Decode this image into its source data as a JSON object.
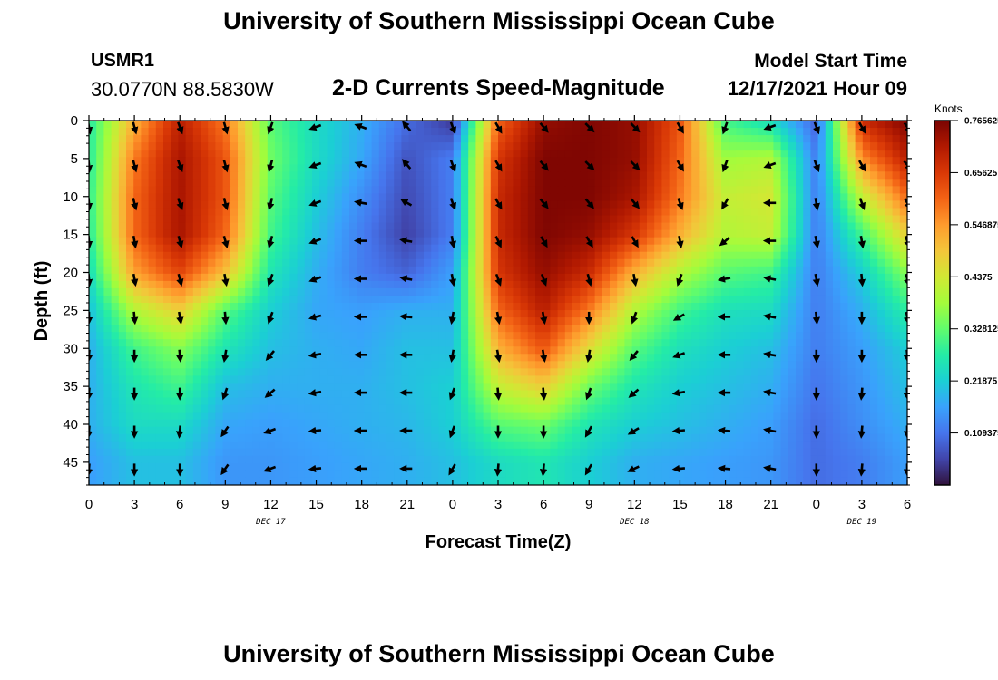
{
  "header": {
    "title": "University of Southern Mississippi Ocean Cube",
    "station_id": "USMR1",
    "coords": "30.0770N  88.5830W",
    "subtitle": "2-D Currents Speed-Magnitude",
    "start_label": "Model Start Time",
    "start_value": "12/17/2021 Hour 09"
  },
  "footer": {
    "title": "University of Southern Mississippi Ocean Cube"
  },
  "colorbar": {
    "unit": "Knots",
    "ticks": [
      "0.109375",
      "0.21875",
      "0.328125",
      "0.4375",
      "0.546875",
      "0.65625",
      "0.765625"
    ],
    "colors": [
      "#30123b",
      "#4145ab",
      "#4675ed",
      "#39a2fc",
      "#1bcfd4",
      "#24eca6",
      "#61fc6c",
      "#a4fc3b",
      "#d1e834",
      "#f3c63a",
      "#fe9b2d",
      "#f36315",
      "#d93806",
      "#b11901",
      "#7a0402"
    ]
  },
  "chart_data": {
    "type": "heatmap",
    "title": "2-D Currents Speed-Magnitude",
    "xlabel": "Forecast Time(Z)",
    "ylabel": "Depth (ft)",
    "x_tick_labels": [
      "0",
      "3",
      "6",
      "9",
      "12",
      "15",
      "18",
      "21",
      "0",
      "3",
      "6",
      "9",
      "12",
      "15",
      "18",
      "21",
      "0",
      "3",
      "6"
    ],
    "x_date_labels": [
      {
        "label": "DEC 17",
        "tick_index": 4
      },
      {
        "label": "DEC 18",
        "tick_index": 12
      },
      {
        "label": "DEC 19",
        "tick_index": 17
      }
    ],
    "y_ticks": [
      0,
      5,
      10,
      15,
      20,
      25,
      30,
      35,
      40,
      45
    ],
    "ylim": [
      0,
      48
    ],
    "xlim_hours": [
      0,
      54
    ],
    "value_range": [
      0.0,
      0.765625
    ],
    "hours": [
      0,
      3,
      6,
      9,
      12,
      15,
      18,
      21,
      24,
      27,
      30,
      33,
      36,
      39,
      42,
      45,
      48,
      51,
      54
    ],
    "depths": [
      0,
      5,
      10,
      15,
      20,
      25,
      30,
      35,
      40,
      45
    ],
    "speed_knots": [
      [
        0.27,
        0.52,
        0.7,
        0.58,
        0.32,
        0.24,
        0.18,
        0.1,
        0.04,
        0.6,
        0.74,
        0.76,
        0.74,
        0.62,
        0.3,
        0.24,
        0.09,
        0.68,
        0.76
      ],
      [
        0.27,
        0.58,
        0.72,
        0.62,
        0.34,
        0.24,
        0.17,
        0.07,
        0.12,
        0.66,
        0.76,
        0.76,
        0.74,
        0.6,
        0.38,
        0.4,
        0.12,
        0.56,
        0.7
      ],
      [
        0.28,
        0.6,
        0.72,
        0.62,
        0.32,
        0.22,
        0.14,
        0.06,
        0.12,
        0.68,
        0.76,
        0.76,
        0.72,
        0.58,
        0.42,
        0.44,
        0.12,
        0.42,
        0.6
      ],
      [
        0.27,
        0.6,
        0.72,
        0.6,
        0.3,
        0.2,
        0.12,
        0.05,
        0.12,
        0.68,
        0.76,
        0.74,
        0.66,
        0.52,
        0.4,
        0.42,
        0.12,
        0.3,
        0.48
      ],
      [
        0.24,
        0.54,
        0.64,
        0.5,
        0.26,
        0.18,
        0.12,
        0.09,
        0.16,
        0.66,
        0.74,
        0.68,
        0.52,
        0.4,
        0.32,
        0.3,
        0.12,
        0.22,
        0.36
      ],
      [
        0.2,
        0.4,
        0.48,
        0.32,
        0.22,
        0.17,
        0.16,
        0.18,
        0.18,
        0.6,
        0.7,
        0.58,
        0.4,
        0.3,
        0.25,
        0.24,
        0.12,
        0.18,
        0.28
      ],
      [
        0.18,
        0.3,
        0.36,
        0.26,
        0.2,
        0.18,
        0.17,
        0.2,
        0.2,
        0.52,
        0.62,
        0.46,
        0.32,
        0.25,
        0.22,
        0.2,
        0.12,
        0.16,
        0.22
      ],
      [
        0.18,
        0.26,
        0.3,
        0.2,
        0.18,
        0.18,
        0.18,
        0.2,
        0.22,
        0.42,
        0.48,
        0.34,
        0.26,
        0.22,
        0.2,
        0.18,
        0.11,
        0.15,
        0.2
      ],
      [
        0.18,
        0.24,
        0.24,
        0.17,
        0.16,
        0.17,
        0.18,
        0.19,
        0.22,
        0.32,
        0.34,
        0.26,
        0.22,
        0.2,
        0.18,
        0.16,
        0.1,
        0.14,
        0.18
      ],
      [
        0.16,
        0.2,
        0.2,
        0.15,
        0.15,
        0.16,
        0.17,
        0.18,
        0.2,
        0.24,
        0.26,
        0.22,
        0.18,
        0.17,
        0.16,
        0.15,
        0.1,
        0.12,
        0.16
      ]
    ],
    "direction_deg": [
      [
        170,
        165,
        160,
        165,
        200,
        250,
        290,
        320,
        160,
        150,
        140,
        135,
        135,
        150,
        200,
        250,
        160,
        150,
        145
      ],
      [
        175,
        165,
        160,
        165,
        195,
        250,
        290,
        320,
        160,
        150,
        140,
        135,
        135,
        150,
        200,
        250,
        160,
        150,
        140
      ],
      [
        175,
        165,
        160,
        165,
        195,
        250,
        280,
        300,
        160,
        150,
        140,
        140,
        140,
        160,
        210,
        270,
        170,
        160,
        150
      ],
      [
        175,
        170,
        165,
        165,
        195,
        250,
        270,
        280,
        170,
        155,
        150,
        150,
        150,
        170,
        230,
        270,
        170,
        170,
        160
      ],
      [
        175,
        170,
        165,
        170,
        200,
        250,
        270,
        280,
        170,
        160,
        160,
        165,
        170,
        200,
        260,
        280,
        170,
        175,
        165
      ],
      [
        180,
        175,
        170,
        175,
        200,
        255,
        270,
        275,
        190,
        170,
        170,
        180,
        200,
        240,
        270,
        280,
        175,
        180,
        170
      ],
      [
        185,
        180,
        175,
        190,
        220,
        260,
        270,
        270,
        190,
        170,
        170,
        190,
        220,
        250,
        270,
        280,
        180,
        180,
        175
      ],
      [
        185,
        180,
        180,
        200,
        230,
        260,
        270,
        270,
        200,
        175,
        175,
        200,
        230,
        260,
        270,
        280,
        180,
        185,
        175
      ],
      [
        185,
        180,
        185,
        215,
        250,
        265,
        270,
        270,
        200,
        180,
        180,
        210,
        240,
        265,
        275,
        280,
        180,
        185,
        180
      ],
      [
        185,
        180,
        180,
        215,
        250,
        265,
        270,
        270,
        210,
        185,
        185,
        210,
        245,
        265,
        275,
        280,
        180,
        185,
        180
      ]
    ]
  }
}
